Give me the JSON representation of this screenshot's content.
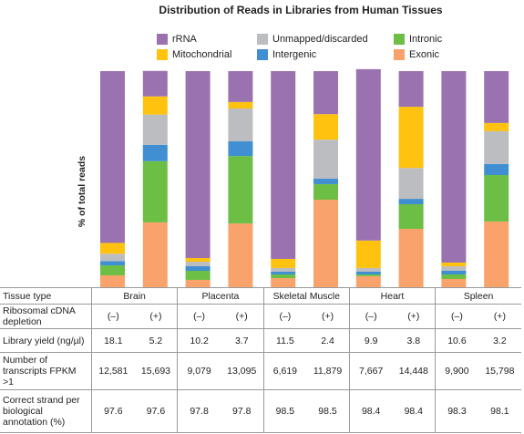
{
  "chart_data": {
    "type": "stacked-bar",
    "title": "Distribution of Reads in Libraries from Human Tissues",
    "ylabel": "% of total reads",
    "ylim": [
      0,
      100
    ],
    "series": [
      {
        "name": "rRNA",
        "color": "#9b72b0",
        "values": [
          79.5,
          11.8,
          86.5,
          14.3,
          86.9,
          19.9,
          79.3,
          16.5,
          88.6,
          24
        ]
      },
      {
        "name": "Mitochondrial",
        "color": "#ffc20e",
        "values": [
          5,
          8.4,
          1.7,
          3,
          4.2,
          11.8,
          12.7,
          28.3,
          1.7,
          3.8
        ]
      },
      {
        "name": "Unmapped/discarded",
        "color": "#bcbdc0",
        "values": [
          3.4,
          14,
          2.1,
          15.2,
          1.7,
          18.1,
          1.7,
          14.3,
          2.1,
          15.2
        ]
      },
      {
        "name": "Intergenic",
        "color": "#3f8fd2",
        "values": [
          2,
          7.6,
          2.1,
          6.8,
          1.3,
          2.5,
          1.3,
          2.5,
          1.7,
          5.1
        ]
      },
      {
        "name": "Intronic",
        "color": "#6cbf44",
        "values": [
          4.6,
          28.3,
          4.2,
          31.2,
          1.7,
          7.2,
          0.8,
          11.4,
          2.1,
          21.5
        ]
      },
      {
        "name": "Exonic",
        "color": "#f9a26c",
        "values": [
          5.5,
          30,
          3.4,
          29.5,
          4.2,
          40.5,
          5.1,
          27,
          3.8,
          30.4
        ]
      }
    ]
  },
  "table": {
    "header": [
      "Tissue type",
      "Brain",
      "Placenta",
      "Skeletal Muscle",
      "Heart",
      "Spleen"
    ],
    "rows": [
      [
        "Ribosomal cDNA depletion",
        "(–)",
        "(+)",
        "(–)",
        "(+)",
        "(–)",
        "(+)",
        "(–)",
        "(+)",
        "(–)",
        "(+)"
      ],
      [
        "Library yield (ng/µl)",
        "18.1",
        "5.2",
        "10.2",
        "3.7",
        "11.5",
        "2.4",
        "9.9",
        "3.8",
        "10.6",
        "3.2"
      ],
      [
        "Number of transcripts FPKM >1",
        "12,581",
        "15,693",
        "9,079",
        "13,095",
        "6,619",
        "11,879",
        "7,667",
        "14,448",
        "9,900",
        "15,798"
      ],
      [
        "Correct strand per biological annotation (%)",
        "97.6",
        "97.6",
        "97.8",
        "97.8",
        "98.5",
        "98.5",
        "98.4",
        "98.4",
        "98.3",
        "98.1"
      ]
    ]
  }
}
